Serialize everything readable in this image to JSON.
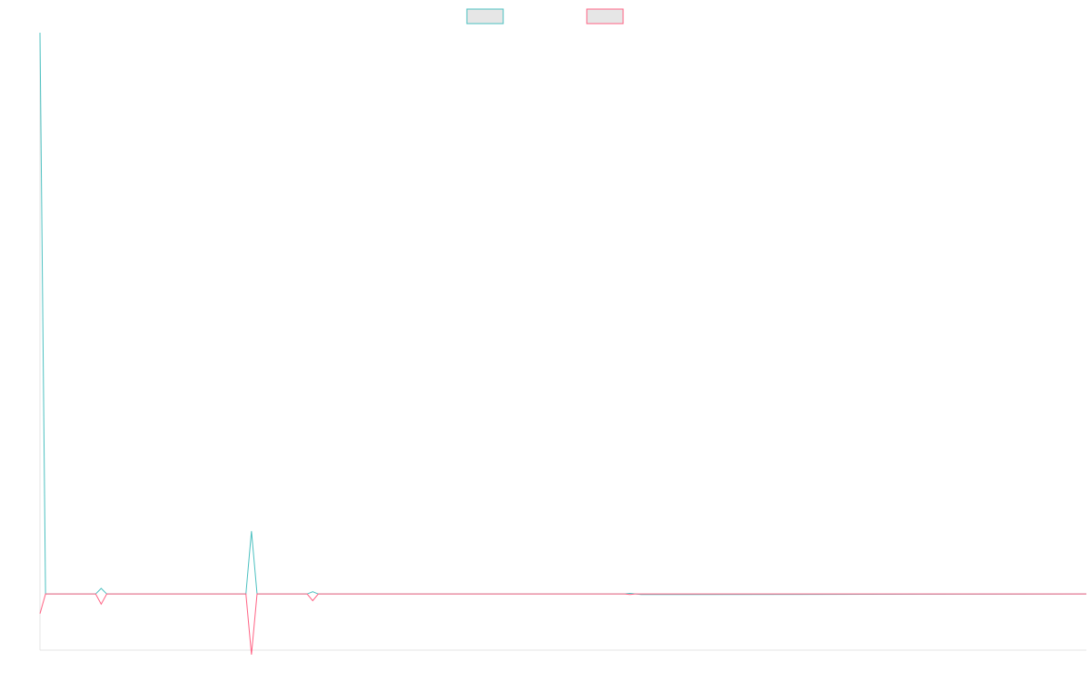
{
  "chart_data": {
    "type": "line",
    "title": "",
    "xlabel": "",
    "ylabel": "",
    "grid": false,
    "legend_position": "top-center",
    "x_range": [
      0,
      188
    ],
    "y_range": [
      -100,
      1000
    ],
    "x": [
      0,
      1,
      2,
      10,
      11,
      12,
      37,
      38,
      39,
      48,
      49,
      50,
      105,
      106,
      107,
      108,
      188
    ],
    "series": [
      {
        "name": "",
        "color": "#4bc0c0",
        "values": [
          1000,
          0,
          0,
          0,
          10,
          0,
          0,
          112,
          0,
          0,
          4,
          0,
          0,
          1,
          0,
          -1,
          0
        ]
      },
      {
        "name": "",
        "color": "#ff6384",
        "values": [
          -35,
          0,
          0,
          0,
          -18,
          0,
          0,
          -108,
          0,
          0,
          -12,
          0,
          0,
          -1,
          0,
          0,
          0
        ]
      }
    ]
  }
}
